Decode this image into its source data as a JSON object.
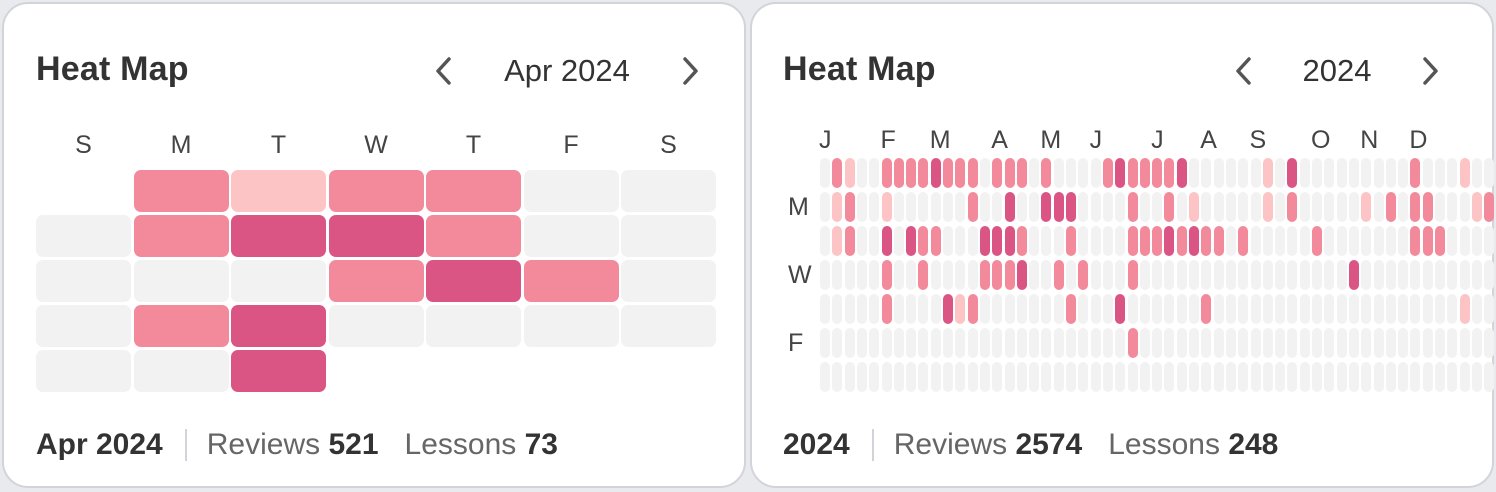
{
  "colors": {
    "empty": "#f2f2f2",
    "level1": "#fdc4c6",
    "level2": "#f38a9c",
    "level3": "#da5583"
  },
  "month_card": {
    "title": "Heat Map",
    "nav_label": "Apr 2024",
    "weekdays": [
      "S",
      "M",
      "T",
      "W",
      "T",
      "F",
      "S"
    ],
    "weeks": [
      [
        null,
        2,
        1,
        2,
        2,
        0,
        0
      ],
      [
        0,
        2,
        3,
        3,
        2,
        0,
        0
      ],
      [
        0,
        0,
        0,
        2,
        3,
        2,
        0
      ],
      [
        0,
        2,
        3,
        0,
        0,
        0,
        0
      ],
      [
        0,
        0,
        3,
        null,
        null,
        null,
        null
      ]
    ],
    "footer": {
      "period": "Apr 2024",
      "reviews_label": "Reviews",
      "reviews_value": "521",
      "lessons_label": "Lessons",
      "lessons_value": "73"
    }
  },
  "year_card": {
    "title": "Heat Map",
    "nav_label": "2024",
    "months": [
      {
        "label": "J",
        "week": 0
      },
      {
        "label": "F",
        "week": 5
      },
      {
        "label": "M",
        "week": 9
      },
      {
        "label": "A",
        "week": 14
      },
      {
        "label": "M",
        "week": 18
      },
      {
        "label": "J",
        "week": 22
      },
      {
        "label": "J",
        "week": 27
      },
      {
        "label": "A",
        "week": 31
      },
      {
        "label": "S",
        "week": 35
      },
      {
        "label": "O",
        "week": 40
      },
      {
        "label": "N",
        "week": 44
      },
      {
        "label": "D",
        "week": 48
      }
    ],
    "weekday_labels": [
      {
        "label": "M",
        "row": 1
      },
      {
        "label": "W",
        "row": 3
      },
      {
        "label": "F",
        "row": 5
      }
    ],
    "weeks": [
      [
        0,
        0,
        0,
        0,
        0,
        0,
        0
      ],
      [
        2,
        1,
        1,
        0,
        0,
        0,
        0
      ],
      [
        1,
        2,
        2,
        0,
        0,
        0,
        0
      ],
      [
        0,
        0,
        0,
        0,
        0,
        0,
        0
      ],
      [
        0,
        0,
        0,
        0,
        0,
        0,
        0
      ],
      [
        2,
        1,
        3,
        2,
        2,
        0,
        0
      ],
      [
        2,
        0,
        0,
        0,
        0,
        0,
        0
      ],
      [
        2,
        0,
        3,
        0,
        0,
        0,
        0
      ],
      [
        2,
        0,
        2,
        2,
        0,
        0,
        0
      ],
      [
        3,
        0,
        2,
        0,
        0,
        0,
        0
      ],
      [
        2,
        0,
        0,
        0,
        3,
        0,
        0
      ],
      [
        2,
        0,
        0,
        0,
        1,
        0,
        0
      ],
      [
        2,
        2,
        0,
        0,
        2,
        0,
        0
      ],
      [
        0,
        0,
        3,
        2,
        0,
        0,
        0
      ],
      [
        2,
        0,
        3,
        2,
        0,
        0,
        0
      ],
      [
        2,
        3,
        3,
        2,
        0,
        0,
        0
      ],
      [
        2,
        0,
        2,
        3,
        0,
        0,
        0
      ],
      [
        0,
        0,
        0,
        0,
        0,
        0,
        0
      ],
      [
        2,
        3,
        0,
        0,
        0,
        0,
        0
      ],
      [
        0,
        3,
        0,
        2,
        0,
        0,
        0
      ],
      [
        0,
        3,
        2,
        0,
        2,
        0,
        0
      ],
      [
        0,
        0,
        0,
        2,
        0,
        0,
        0
      ],
      [
        0,
        0,
        0,
        0,
        0,
        0,
        0
      ],
      [
        2,
        0,
        0,
        0,
        0,
        0,
        0
      ],
      [
        3,
        0,
        0,
        0,
        3,
        0,
        0
      ],
      [
        2,
        2,
        2,
        2,
        0,
        2,
        0
      ],
      [
        2,
        0,
        2,
        0,
        0,
        0,
        0
      ],
      [
        2,
        0,
        2,
        0,
        0,
        0,
        0
      ],
      [
        2,
        2,
        3,
        0,
        0,
        0,
        0
      ],
      [
        3,
        0,
        2,
        0,
        0,
        0,
        0
      ],
      [
        0,
        1,
        3,
        0,
        0,
        0,
        0
      ],
      [
        0,
        0,
        2,
        0,
        2,
        0,
        0
      ],
      [
        0,
        0,
        2,
        0,
        0,
        0,
        0
      ],
      [
        0,
        0,
        0,
        0,
        0,
        0,
        0
      ],
      [
        0,
        0,
        2,
        0,
        0,
        0,
        0
      ],
      [
        0,
        0,
        0,
        0,
        0,
        0,
        0
      ],
      [
        1,
        1,
        0,
        0,
        0,
        0,
        0
      ],
      [
        0,
        0,
        0,
        0,
        0,
        0,
        0
      ],
      [
        3,
        2,
        0,
        0,
        0,
        0,
        0
      ],
      [
        0,
        0,
        0,
        0,
        0,
        0,
        0
      ],
      [
        0,
        0,
        2,
        0,
        0,
        0,
        0
      ],
      [
        0,
        0,
        0,
        0,
        0,
        0,
        0
      ],
      [
        0,
        0,
        0,
        0,
        0,
        0,
        0
      ],
      [
        0,
        0,
        0,
        3,
        0,
        0,
        0
      ],
      [
        0,
        1,
        0,
        0,
        0,
        0,
        0
      ],
      [
        0,
        0,
        0,
        0,
        0,
        0,
        0
      ],
      [
        0,
        2,
        0,
        0,
        0,
        0,
        0
      ],
      [
        0,
        0,
        0,
        0,
        0,
        0,
        0
      ],
      [
        2,
        2,
        2,
        0,
        0,
        0,
        0
      ],
      [
        0,
        2,
        2,
        0,
        0,
        0,
        0
      ],
      [
        0,
        0,
        2,
        0,
        0,
        0,
        0
      ],
      [
        0,
        0,
        0,
        0,
        0,
        0,
        0
      ],
      [
        1,
        0,
        0,
        0,
        1,
        0,
        0
      ],
      [
        0,
        1,
        0,
        0,
        0,
        0,
        0
      ],
      [
        0,
        2,
        0,
        0,
        0,
        0,
        0
      ]
    ],
    "footer": {
      "period": "2024",
      "reviews_label": "Reviews",
      "reviews_value": "2574",
      "lessons_label": "Lessons",
      "lessons_value": "248"
    }
  }
}
